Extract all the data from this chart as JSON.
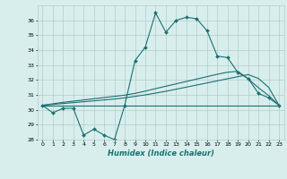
{
  "xlabel": "Humidex (Indice chaleur)",
  "x": [
    0,
    1,
    2,
    3,
    4,
    5,
    6,
    7,
    8,
    9,
    10,
    11,
    12,
    13,
    14,
    15,
    16,
    17,
    18,
    19,
    20,
    21,
    22,
    23
  ],
  "line1": [
    30.3,
    29.8,
    30.1,
    30.1,
    28.3,
    28.7,
    28.3,
    28.0,
    30.3,
    33.3,
    34.2,
    36.5,
    35.2,
    36.0,
    36.2,
    36.1,
    35.3,
    33.6,
    33.5,
    32.5,
    32.1,
    31.1,
    30.8,
    30.3
  ],
  "line2": [
    30.3,
    30.3,
    30.3,
    30.3,
    30.3,
    30.3,
    30.3,
    30.3,
    30.3,
    30.3,
    30.3,
    30.3,
    30.3,
    30.3,
    30.3,
    30.3,
    30.3,
    30.3,
    30.3,
    30.3,
    30.3,
    30.3,
    30.3,
    30.3
  ],
  "line3": [
    30.3,
    30.36,
    30.42,
    30.48,
    30.54,
    30.6,
    30.66,
    30.72,
    30.8,
    30.9,
    31.0,
    31.12,
    31.24,
    31.38,
    31.52,
    31.66,
    31.8,
    31.94,
    32.08,
    32.22,
    32.36,
    32.1,
    31.5,
    30.3
  ],
  "line4": [
    30.3,
    30.4,
    30.5,
    30.58,
    30.66,
    30.74,
    30.82,
    30.9,
    30.98,
    31.1,
    31.25,
    31.42,
    31.58,
    31.74,
    31.9,
    32.06,
    32.22,
    32.38,
    32.52,
    32.58,
    32.08,
    31.48,
    30.95,
    30.3
  ],
  "bg_color": "#d8eeed",
  "grid_color": "#b0cccc",
  "line_color": "#1a7070",
  "ylim": [
    28,
    37
  ],
  "yticks": [
    28,
    29,
    30,
    31,
    32,
    33,
    34,
    35,
    36
  ],
  "xticks": [
    0,
    1,
    2,
    3,
    4,
    5,
    6,
    7,
    8,
    9,
    10,
    11,
    12,
    13,
    14,
    15,
    16,
    17,
    18,
    19,
    20,
    21,
    22,
    23
  ]
}
